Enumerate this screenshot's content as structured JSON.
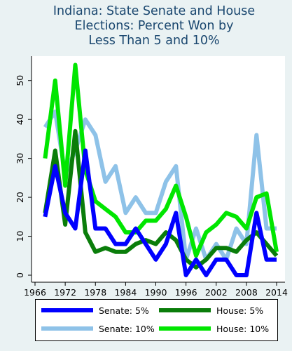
{
  "chart_data": {
    "type": "line",
    "title": [
      "Indiana: State Senate and House",
      "Elections: Percent Won by",
      "Less Than 5 and 10%"
    ],
    "xlabel": "",
    "ylabel": "",
    "x": [
      1968,
      1970,
      1972,
      1974,
      1976,
      1978,
      1980,
      1982,
      1984,
      1986,
      1988,
      1990,
      1992,
      1994,
      1996,
      1998,
      2000,
      2002,
      2004,
      2006,
      2008,
      2010,
      2012,
      2014
    ],
    "xlim": [
      1966,
      2014
    ],
    "ylim": [
      0,
      55
    ],
    "xticks": [
      "1966",
      "1972",
      "1978",
      "1984",
      "1990",
      "1996",
      "2002",
      "2008",
      "2014"
    ],
    "yticks": [
      "0",
      "10",
      "20",
      "30",
      "40",
      "50"
    ],
    "grid": false,
    "legend_position": "bottom",
    "series": [
      {
        "name": "Senate: 10%",
        "color": "#8ec2e8",
        "values": [
          38,
          42,
          26,
          32,
          40,
          36,
          24,
          28,
          16,
          20,
          16,
          16,
          24,
          28,
          4,
          12,
          4,
          8,
          4,
          12,
          8,
          36,
          12,
          12
        ]
      },
      {
        "name": "House: 10%",
        "color": "#00e600",
        "values": [
          30,
          50,
          23,
          54,
          27,
          19,
          17,
          15,
          11,
          11,
          14,
          14,
          17,
          23,
          15,
          5,
          11,
          13,
          16,
          15,
          12,
          20,
          21,
          6
        ]
      },
      {
        "name": "House: 5%",
        "color": "#0a7d0a",
        "values": [
          16,
          32,
          13,
          37,
          11,
          6,
          7,
          6,
          6,
          8,
          9,
          8,
          11,
          9,
          4,
          2,
          4,
          7,
          7,
          6,
          9,
          11,
          8,
          5
        ]
      },
      {
        "name": "Senate: 5%",
        "color": "#0000ff",
        "values": [
          15,
          28,
          16,
          12,
          32,
          12,
          12,
          8,
          8,
          12,
          8,
          4,
          8,
          16,
          0,
          4,
          0,
          4,
          4,
          0,
          0,
          16,
          4,
          4
        ]
      }
    ],
    "legend": [
      {
        "name": "Senate: 5%",
        "color": "#0000ff"
      },
      {
        "name": "House: 5%",
        "color": "#0a7d0a"
      },
      {
        "name": "Senate: 10%",
        "color": "#8ec2e8"
      },
      {
        "name": "House: 10%",
        "color": "#00e600"
      }
    ]
  }
}
